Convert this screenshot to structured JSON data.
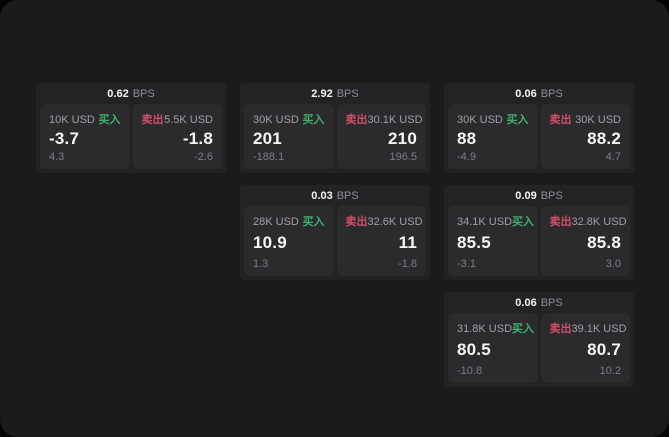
{
  "labels": {
    "bps": "BPS",
    "buy": "买入",
    "sell": "卖出"
  },
  "colors": {
    "panel_bg": "#1b1b1d",
    "card_bg": "#232326",
    "cell_bg": "#2b2b2e",
    "buy_green": "#3eb06d",
    "sell_red": "#d04f68"
  },
  "cards": [
    {
      "bps": "0.62",
      "buy": {
        "size": "10K USD",
        "price": "-3.7",
        "delta": "4.3"
      },
      "sell": {
        "size": "5.5K USD",
        "price": "-1.8",
        "delta": "-2.6"
      }
    },
    {
      "bps": "2.92",
      "buy": {
        "size": "30K USD",
        "price": "201",
        "delta": "-188.1"
      },
      "sell": {
        "size": "30.1K USD",
        "price": "210",
        "delta": "196.5"
      }
    },
    {
      "bps": "0.06",
      "buy": {
        "size": "30K USD",
        "price": "88",
        "delta": "-4.9"
      },
      "sell": {
        "size": "30K USD",
        "price": "88.2",
        "delta": "4.7"
      }
    },
    {
      "bps": "0.03",
      "buy": {
        "size": "28K USD",
        "price": "10.9",
        "delta": "1.3"
      },
      "sell": {
        "size": "32.6K USD",
        "price": "11",
        "delta": "-1.8"
      }
    },
    {
      "bps": "0.09",
      "buy": {
        "size": "34.1K USD",
        "price": "85.5",
        "delta": "-3.1"
      },
      "sell": {
        "size": "32.8K USD",
        "price": "85.8",
        "delta": "3.0"
      }
    },
    {
      "bps": "0.06",
      "buy": {
        "size": "31.8K USD",
        "price": "80.5",
        "delta": "-10.8"
      },
      "sell": {
        "size": "39.1K USD",
        "price": "80.7",
        "delta": "10.2"
      }
    }
  ]
}
